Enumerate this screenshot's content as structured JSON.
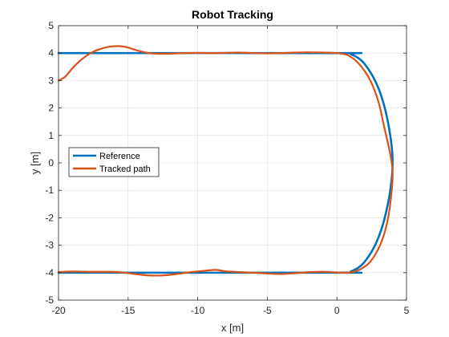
{
  "chart_data": {
    "type": "line",
    "title": "Robot Tracking",
    "xlabel": "x [m]",
    "ylabel": "y [m]",
    "xlim": [
      -20,
      5
    ],
    "ylim": [
      -5,
      5
    ],
    "xticks": [
      -20,
      -15,
      -10,
      -5,
      0,
      5
    ],
    "yticks": [
      -5,
      -4,
      -3,
      -2,
      -1,
      0,
      1,
      2,
      3,
      4,
      5
    ],
    "grid": true,
    "legend_position": "left",
    "series": [
      {
        "name": "Reference",
        "color": "#0072BD",
        "points": [
          [
            -20,
            4
          ],
          [
            0,
            4
          ],
          [
            1,
            3.96
          ],
          [
            2,
            3.6
          ],
          [
            3,
            2.7
          ],
          [
            3.7,
            1.4
          ],
          [
            4,
            0
          ],
          [
            3.7,
            -1.4
          ],
          [
            3,
            -2.7
          ],
          [
            2,
            -3.6
          ],
          [
            1,
            -3.96
          ],
          [
            0,
            -4
          ],
          [
            -20,
            -4
          ]
        ]
      },
      {
        "name": "Tracked path",
        "color": "#D95319",
        "points": [
          [
            -20,
            3.0
          ],
          [
            -19.5,
            3.15
          ],
          [
            -19,
            3.45
          ],
          [
            -18.5,
            3.7
          ],
          [
            -18,
            3.9
          ],
          [
            -17.5,
            4.05
          ],
          [
            -17,
            4.15
          ],
          [
            -16.5,
            4.22
          ],
          [
            -16,
            4.25
          ],
          [
            -15.5,
            4.25
          ],
          [
            -15,
            4.2
          ],
          [
            -14.5,
            4.12
          ],
          [
            -14,
            4.05
          ],
          [
            -13.5,
            4.0
          ],
          [
            -13,
            3.98
          ],
          [
            -12,
            3.98
          ],
          [
            -11,
            4.0
          ],
          [
            -10,
            4.01
          ],
          [
            -9,
            4.0
          ],
          [
            -8,
            4.01
          ],
          [
            -7,
            4.02
          ],
          [
            -6,
            4.0
          ],
          [
            -5,
            3.99
          ],
          [
            -4,
            4.0
          ],
          [
            -3,
            4.02
          ],
          [
            -2,
            4.03
          ],
          [
            -1,
            4.02
          ],
          [
            0,
            4.0
          ],
          [
            0.8,
            3.92
          ],
          [
            1.6,
            3.6
          ],
          [
            2.4,
            3.0
          ],
          [
            3.0,
            2.2
          ],
          [
            3.4,
            1.3
          ],
          [
            3.8,
            0.4
          ],
          [
            4.0,
            -0.3
          ],
          [
            3.9,
            -1.2
          ],
          [
            3.6,
            -2.2
          ],
          [
            3.1,
            -3.0
          ],
          [
            2.4,
            -3.6
          ],
          [
            1.6,
            -3.9
          ],
          [
            0.8,
            -4.0
          ],
          [
            0,
            -3.99
          ],
          [
            -1,
            -3.97
          ],
          [
            -2,
            -3.98
          ],
          [
            -3,
            -4.02
          ],
          [
            -4,
            -4.05
          ],
          [
            -5,
            -4.03
          ],
          [
            -6,
            -4.0
          ],
          [
            -7,
            -3.98
          ],
          [
            -8,
            -3.95
          ],
          [
            -8.7,
            -3.9
          ],
          [
            -9.5,
            -3.93
          ],
          [
            -10.5,
            -3.98
          ],
          [
            -11.5,
            -4.05
          ],
          [
            -12.5,
            -4.1
          ],
          [
            -13.5,
            -4.1
          ],
          [
            -14.5,
            -4.05
          ],
          [
            -15.5,
            -3.99
          ],
          [
            -16.5,
            -3.97
          ],
          [
            -17.5,
            -3.97
          ],
          [
            -18.5,
            -3.96
          ],
          [
            -19.3,
            -3.96
          ],
          [
            -20,
            -3.98
          ]
        ]
      }
    ]
  }
}
